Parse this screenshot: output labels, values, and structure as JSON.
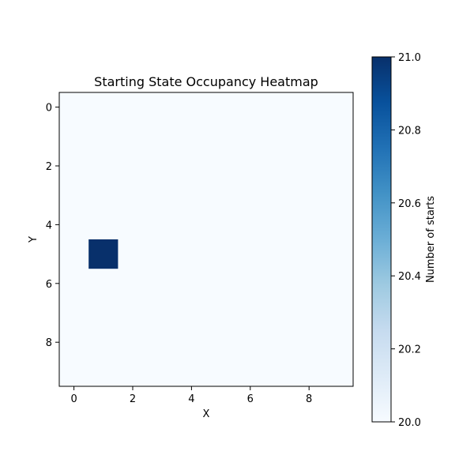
{
  "chart_data": {
    "type": "heatmap",
    "title": "Starting State Occupancy Heatmap",
    "xlabel": "X",
    "ylabel": "Y",
    "x_ticks": [
      "0",
      "2",
      "4",
      "6",
      "8"
    ],
    "y_ticks": [
      "0",
      "2",
      "4",
      "6",
      "8"
    ],
    "grid_size": [
      10,
      10
    ],
    "x_range": [
      -0.5,
      9.5
    ],
    "y_range": [
      -0.5,
      9.5
    ],
    "y_inverted": true,
    "default_value": 20.0,
    "cells": [
      {
        "x": 1,
        "y": 5,
        "value": 21.0
      }
    ],
    "colormap": "Blues",
    "color_low": "#f7fbff",
    "color_high": "#08306b",
    "colorbar": {
      "label": "Number of starts",
      "range": [
        20.0,
        21.0
      ],
      "ticks": [
        "20.0",
        "20.2",
        "20.4",
        "20.6",
        "20.8",
        "21.0"
      ]
    },
    "grid": false
  }
}
